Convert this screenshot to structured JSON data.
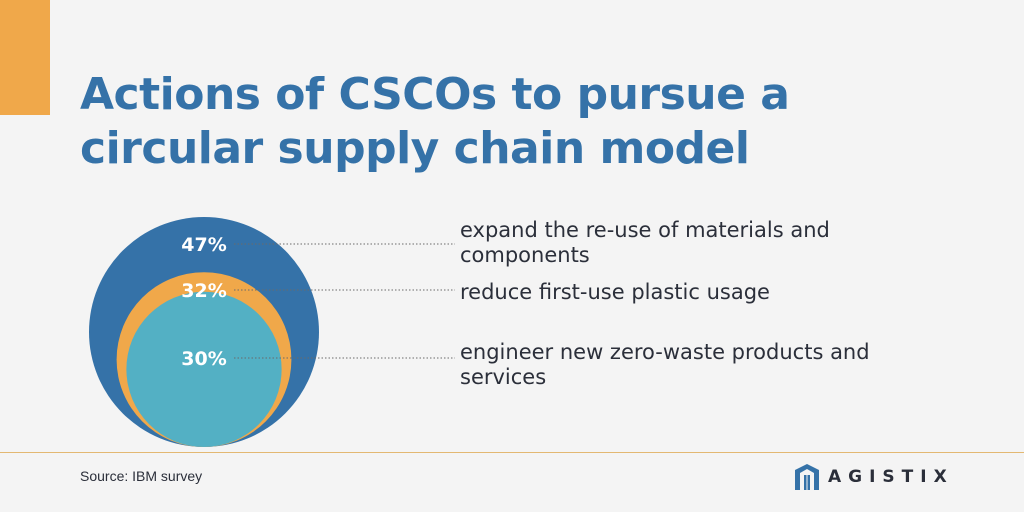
{
  "header": {
    "title": "Actions of CSCOs to pursue a circular supply chain model"
  },
  "chart_data": {
    "type": "nested-circles",
    "items": [
      {
        "value": 47,
        "label": "47%",
        "text": "expand the re-use of materials and components",
        "color": "#3572a8"
      },
      {
        "value": 32,
        "label": "32%",
        "text": "reduce first-use plastic usage",
        "color": "#f0a84a"
      },
      {
        "value": 30,
        "label": "30%",
        "text": "engineer new zero-waste products and services",
        "color": "#53b0c4"
      }
    ]
  },
  "footer": {
    "source": "Source: IBM survey",
    "logo_text": "AGISTIX",
    "logo_icon": "agistix-m-icon"
  }
}
